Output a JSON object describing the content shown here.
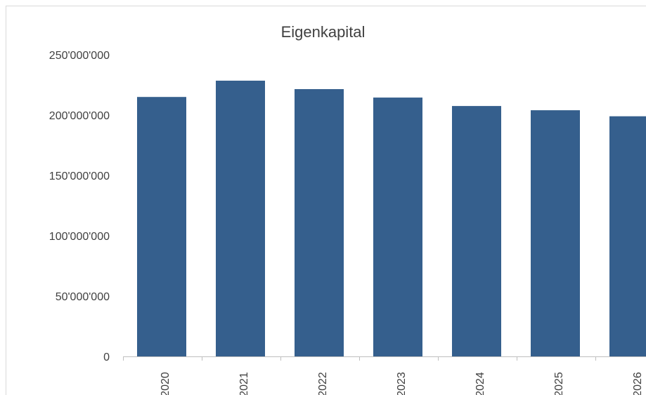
{
  "chart_data": {
    "type": "bar",
    "title": "Eigenkapital",
    "xlabel": "",
    "ylabel": "",
    "categories": [
      "2020",
      "2021",
      "2022",
      "2023",
      "2024",
      "2025",
      "2026"
    ],
    "series": [
      {
        "values": [
          215000000,
          228500000,
          221500000,
          214500000,
          207500000,
          204000000,
          199000000
        ]
      }
    ],
    "y_ticks": [
      "0",
      "50'000'000",
      "100'000'000",
      "150'000'000",
      "200'000'000",
      "250'000'000"
    ],
    "ylim": [
      0,
      250000000
    ],
    "grid": false,
    "bar_color": "#355f8d",
    "axis_color": "#bfbfbf",
    "text_color": "#404040"
  }
}
